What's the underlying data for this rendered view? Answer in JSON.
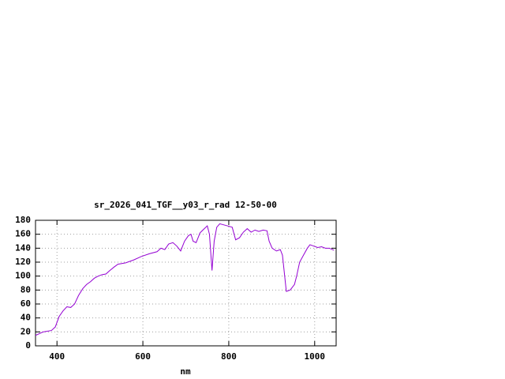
{
  "chart_data": {
    "type": "line",
    "title": "sr_2026_041_TGF__y03_r_rad 12-50-00",
    "x_label": "nm",
    "xlim": [
      350,
      1050
    ],
    "ylim": [
      0,
      180
    ],
    "xticks": [
      400,
      600,
      800,
      1000
    ],
    "yticks": [
      0,
      20,
      40,
      60,
      80,
      100,
      120,
      140,
      160,
      180
    ],
    "grid": true,
    "x": [
      350,
      368,
      387,
      396,
      405,
      414,
      423,
      432,
      441,
      450,
      460,
      469,
      478,
      487,
      496,
      505,
      514,
      523,
      533,
      542,
      560,
      578,
      596,
      615,
      633,
      642,
      651,
      660,
      670,
      679,
      688,
      697,
      706,
      712,
      717,
      724,
      733,
      743,
      750,
      755,
      761,
      766,
      772,
      779,
      797,
      808,
      816,
      825,
      834,
      843,
      852,
      861,
      870,
      880,
      889,
      894,
      901,
      911,
      920,
      925,
      934,
      943,
      953,
      958,
      965,
      974,
      983,
      989,
      998,
      1007,
      1016,
      1025,
      1034,
      1045
    ],
    "series": [
      {
        "color": "#9400d3",
        "values": [
          15,
          20,
          22,
          27,
          42,
          50,
          56,
          55,
          60,
          72,
          82,
          88,
          92,
          97,
          100,
          102,
          103,
          108,
          113,
          117,
          119,
          123,
          128,
          132,
          135,
          140,
          138,
          146,
          148,
          143,
          136,
          150,
          158,
          160,
          150,
          148,
          162,
          168,
          172,
          160,
          108,
          150,
          170,
          175,
          172,
          170,
          152,
          155,
          163,
          168,
          163,
          166,
          164,
          166,
          165,
          150,
          140,
          136,
          138,
          130,
          78,
          80,
          88,
          100,
          120,
          130,
          140,
          145,
          143,
          141,
          142,
          140,
          140,
          137
        ]
      }
    ]
  }
}
